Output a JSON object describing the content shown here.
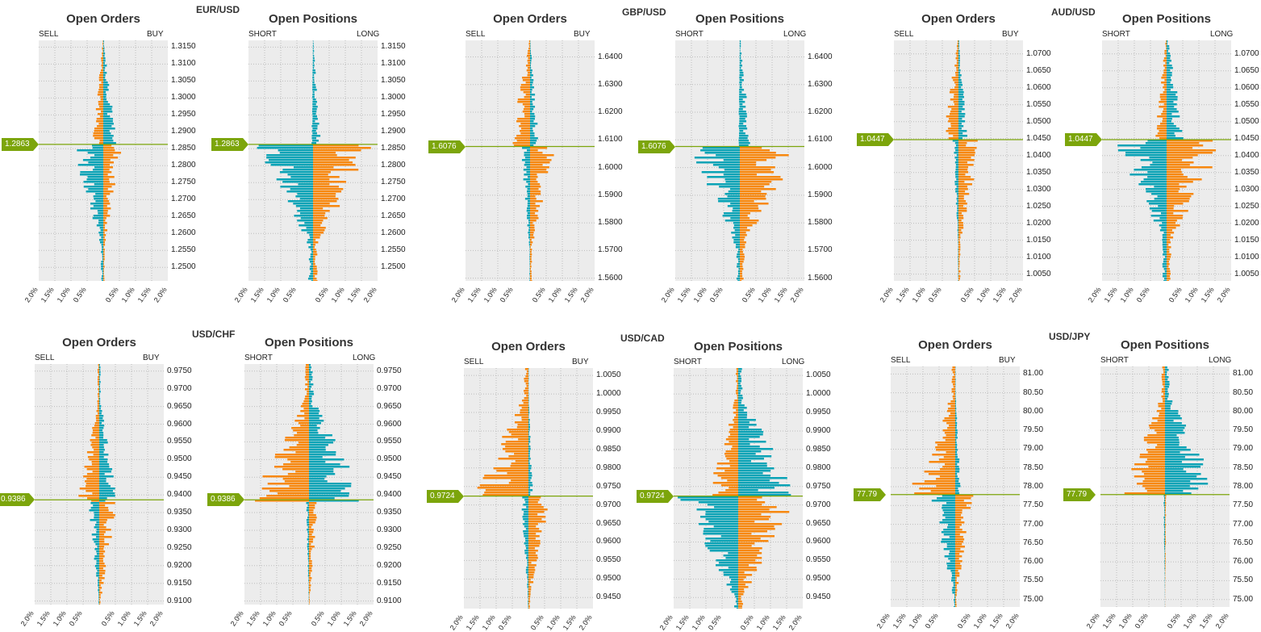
{
  "colors": {
    "orange": "#f7880f",
    "teal": "#0aa3b6",
    "current_line": "#7ca50b",
    "plot_bg": "#ececec",
    "grid": "#bdbdbd"
  },
  "chart_data": [
    {
      "pair": "EUR/USD",
      "type": "bar",
      "title": "Open Orders",
      "left_label": "SELL",
      "right_label": "BUY",
      "current_price_label": "1.2863",
      "current_price": 1.2863,
      "ylim": [
        1.246,
        1.317
      ],
      "y_ticks": [
        "1.3150",
        "1.3100",
        "1.3050",
        "1.3000",
        "1.2950",
        "1.2900",
        "1.2850",
        "1.2800",
        "1.2750",
        "1.2700",
        "1.2650",
        "1.2600",
        "1.2550",
        "1.2500"
      ],
      "x_ticks": [
        "2.0%",
        "1.5%",
        "1.0%",
        "0.5%",
        "",
        "0.5%",
        "1.0%",
        "1.5%",
        "2.0%"
      ],
      "xlim": [
        -2,
        2
      ],
      "profile": {
        "above": {
          "left_max": 0.35,
          "right_max": 0.45,
          "left_color": "orange",
          "right_color": "teal"
        },
        "below": {
          "left_max": 1.0,
          "right_max": 0.6,
          "left_color": "teal",
          "right_color": "orange"
        }
      }
    },
    {
      "pair": "EUR/USD",
      "type": "bar",
      "title": "Open Positions",
      "left_label": "SHORT",
      "right_label": "LONG",
      "current_price_label": "1.2863",
      "current_price": 1.2863,
      "ylim": [
        1.246,
        1.317
      ],
      "y_ticks": [
        "1.3150",
        "1.3100",
        "1.3050",
        "1.3000",
        "1.2950",
        "1.2900",
        "1.2850",
        "1.2800",
        "1.2750",
        "1.2700",
        "1.2650",
        "1.2600",
        "1.2550",
        "1.2500"
      ],
      "x_ticks": [
        "2.0%",
        "1.5%",
        "1.0%",
        "0.5%",
        "",
        "0.5%",
        "1.0%",
        "1.5%",
        "2.0%"
      ],
      "xlim": [
        -2,
        2
      ],
      "profile": {
        "above": {
          "left_max": 0.05,
          "right_max": 0.25,
          "left_color": "teal",
          "right_color": "teal"
        },
        "below": {
          "left_max": 1.9,
          "right_max": 1.9,
          "left_color": "teal",
          "right_color": "orange"
        }
      }
    },
    {
      "pair": "GBP/USD",
      "type": "bar",
      "title": "Open Orders",
      "left_label": "SELL",
      "right_label": "BUY",
      "current_price_label": "1.6076",
      "current_price": 1.6076,
      "ylim": [
        1.559,
        1.646
      ],
      "y_ticks": [
        "1.6400",
        "1.6300",
        "1.6200",
        "1.6100",
        "1.6000",
        "1.5900",
        "1.5800",
        "1.5700",
        "1.5600"
      ],
      "x_ticks": [
        "2.0%",
        "1.5%",
        "1.0%",
        "0.5%",
        "",
        "0.5%",
        "1.0%",
        "1.5%",
        "2.0%"
      ],
      "xlim": [
        -2,
        2
      ],
      "profile": {
        "above": {
          "left_max": 0.7,
          "right_max": 0.3,
          "left_color": "orange",
          "right_color": "teal"
        },
        "below": {
          "left_max": 0.3,
          "right_max": 0.8,
          "left_color": "teal",
          "right_color": "orange"
        }
      }
    },
    {
      "pair": "GBP/USD",
      "type": "bar",
      "title": "Open Positions",
      "left_label": "SHORT",
      "right_label": "LONG",
      "current_price_label": "1.6076",
      "current_price": 1.6076,
      "ylim": [
        1.559,
        1.646
      ],
      "y_ticks": [
        "1.6400",
        "1.6300",
        "1.6200",
        "1.6100",
        "1.6000",
        "1.5900",
        "1.5800",
        "1.5700",
        "1.5600"
      ],
      "x_ticks": [
        "2.0%",
        "1.5%",
        "1.0%",
        "0.5%",
        "",
        "0.5%",
        "1.0%",
        "1.5%",
        "2.0%"
      ],
      "xlim": [
        -2,
        2
      ],
      "profile": {
        "above": {
          "left_max": 0.05,
          "right_max": 0.4,
          "left_color": "teal",
          "right_color": "teal"
        },
        "below": {
          "left_max": 1.6,
          "right_max": 1.9,
          "left_color": "teal",
          "right_color": "orange"
        }
      }
    },
    {
      "pair": "AUD/USD",
      "type": "bar",
      "title": "Open Orders",
      "left_label": "SELL",
      "right_label": "BUY",
      "current_price_label": "1.0447",
      "current_price": 1.0447,
      "ylim": [
        1.003,
        1.074
      ],
      "y_ticks": [
        "1.0700",
        "1.0650",
        "1.0600",
        "1.0550",
        "1.0500",
        "1.0450",
        "1.0400",
        "1.0350",
        "1.0300",
        "1.0250",
        "1.0200",
        "1.0150",
        "1.0100",
        "1.0050"
      ],
      "x_ticks": [
        "2.0%",
        "1.5%",
        "1.0%",
        "0.5%",
        "",
        "0.5%",
        "1.0%",
        "1.5%",
        "2.0%"
      ],
      "xlim": [
        -2,
        2
      ],
      "profile": {
        "above": {
          "left_max": 0.5,
          "right_max": 0.3,
          "left_color": "orange",
          "right_color": "teal"
        },
        "below": {
          "left_max": 0.2,
          "right_max": 0.8,
          "left_color": "teal",
          "right_color": "orange"
        }
      }
    },
    {
      "pair": "AUD/USD",
      "type": "bar",
      "title": "Open Positions",
      "left_label": "SHORT",
      "right_label": "LONG",
      "current_price_label": "1.0447",
      "current_price": 1.0447,
      "ylim": [
        1.003,
        1.074
      ],
      "y_ticks": [
        "1.0700",
        "1.0650",
        "1.0600",
        "1.0550",
        "1.0500",
        "1.0450",
        "1.0400",
        "1.0350",
        "1.0300",
        "1.0250",
        "1.0200",
        "1.0150",
        "1.0100",
        "1.0050"
      ],
      "x_ticks": [
        "2.0%",
        "1.5%",
        "1.0%",
        "0.5%",
        "",
        "0.5%",
        "1.0%",
        "1.5%",
        "2.0%"
      ],
      "xlim": [
        -2,
        2
      ],
      "profile": {
        "above": {
          "left_max": 0.4,
          "right_max": 0.6,
          "left_color": "orange",
          "right_color": "teal"
        },
        "below": {
          "left_max": 1.7,
          "right_max": 1.9,
          "left_color": "teal",
          "right_color": "orange"
        }
      }
    },
    {
      "pair": "USD/CHF",
      "type": "bar",
      "title": "Open Orders",
      "left_label": "SELL",
      "right_label": "BUY",
      "current_price_label": "0.9386",
      "current_price": 0.9386,
      "ylim": [
        0.909,
        0.977
      ],
      "y_ticks": [
        "0.9750",
        "0.9700",
        "0.9650",
        "0.9600",
        "0.9550",
        "0.9500",
        "0.9450",
        "0.9400",
        "0.9350",
        "0.9300",
        "0.9250",
        "0.9200",
        "0.9150",
        "0.9100"
      ],
      "x_ticks": [
        "2.0%",
        "1.5%",
        "1.0%",
        "0.5%",
        "",
        "0.5%",
        "1.0%",
        "1.5%",
        "2.0%"
      ],
      "xlim": [
        -2,
        2
      ],
      "profile": {
        "above": {
          "left_max": 0.7,
          "right_max": 0.6,
          "left_color": "orange",
          "right_color": "teal"
        },
        "below": {
          "left_max": 0.35,
          "right_max": 0.6,
          "left_color": "teal",
          "right_color": "orange"
        }
      }
    },
    {
      "pair": "USD/CHF",
      "type": "bar",
      "title": "Open Positions",
      "left_label": "SHORT",
      "right_label": "LONG",
      "current_price_label": "0.9386",
      "current_price": 0.9386,
      "ylim": [
        0.909,
        0.977
      ],
      "y_ticks": [
        "0.9750",
        "0.9700",
        "0.9650",
        "0.9600",
        "0.9550",
        "0.9500",
        "0.9450",
        "0.9400",
        "0.9350",
        "0.9300",
        "0.9250",
        "0.9200",
        "0.9150",
        "0.9100"
      ],
      "x_ticks": [
        "2.0%",
        "1.5%",
        "1.0%",
        "0.5%",
        "",
        "0.5%",
        "1.0%",
        "1.5%",
        "2.0%"
      ],
      "xlim": [
        -2,
        2
      ],
      "profile": {
        "above": {
          "left_max": 1.9,
          "right_max": 1.9,
          "left_color": "orange",
          "right_color": "teal"
        },
        "below": {
          "left_max": 0.1,
          "right_max": 0.3,
          "left_color": "teal",
          "right_color": "orange"
        }
      }
    },
    {
      "pair": "USD/CAD",
      "type": "bar",
      "title": "Open Orders",
      "left_label": "SELL",
      "right_label": "BUY",
      "current_price_label": "0.9724",
      "current_price": 0.9724,
      "ylim": [
        0.942,
        1.007
      ],
      "y_ticks": [
        "1.0050",
        "1.0000",
        "0.9950",
        "0.9900",
        "0.9850",
        "0.9800",
        "0.9750",
        "0.9700",
        "0.9650",
        "0.9600",
        "0.9550",
        "0.9500",
        "0.9450"
      ],
      "x_ticks": [
        "2.0%",
        "1.5%",
        "1.0%",
        "0.5%",
        "",
        "0.5%",
        "1.0%",
        "1.5%",
        "2.0%"
      ],
      "xlim": [
        -2,
        2
      ],
      "profile": {
        "above": {
          "left_max": 1.9,
          "right_max": 0.15,
          "left_color": "orange",
          "right_color": "teal"
        },
        "below": {
          "left_max": 0.25,
          "right_max": 0.7,
          "left_color": "teal",
          "right_color": "orange"
        }
      }
    },
    {
      "pair": "USD/CAD",
      "type": "bar",
      "title": "Open Positions",
      "left_label": "SHORT",
      "right_label": "LONG",
      "current_price_label": "0.9724",
      "current_price": 0.9724,
      "ylim": [
        0.942,
        1.007
      ],
      "y_ticks": [
        "1.0050",
        "1.0000",
        "0.9950",
        "0.9900",
        "0.9850",
        "0.9800",
        "0.9750",
        "0.9700",
        "0.9650",
        "0.9600",
        "0.9550",
        "0.9500",
        "0.9450"
      ],
      "x_ticks": [
        "2.0%",
        "1.5%",
        "1.0%",
        "0.5%",
        "",
        "0.5%",
        "1.0%",
        "1.5%",
        "2.0%"
      ],
      "xlim": [
        -2,
        2
      ],
      "profile": {
        "above": {
          "left_max": 1.0,
          "right_max": 1.95,
          "left_color": "orange",
          "right_color": "teal"
        },
        "below": {
          "left_max": 1.9,
          "right_max": 1.9,
          "left_color": "teal",
          "right_color": "orange"
        }
      }
    },
    {
      "pair": "USD/JPY",
      "type": "bar",
      "title": "Open Orders",
      "left_label": "SELL",
      "right_label": "BUY",
      "current_price_label": "77.79",
      "current_price": 77.79,
      "ylim": [
        74.8,
        81.2
      ],
      "y_ticks": [
        "81.00",
        "80.50",
        "80.00",
        "79.50",
        "79.00",
        "78.50",
        "78.00",
        "77.50",
        "77.00",
        "76.50",
        "76.00",
        "75.50",
        "75.00"
      ],
      "x_ticks": [
        "2.0%",
        "1.5%",
        "1.0%",
        "0.5%",
        "",
        "0.5%",
        "1.0%",
        "1.5%",
        "2.0%"
      ],
      "xlim": [
        -2,
        2
      ],
      "profile": {
        "above": {
          "left_max": 1.5,
          "right_max": 0.2,
          "left_color": "orange",
          "right_color": "teal"
        },
        "below": {
          "left_max": 0.8,
          "right_max": 0.6,
          "left_color": "teal",
          "right_color": "orange"
        }
      }
    },
    {
      "pair": "USD/JPY",
      "type": "bar",
      "title": "Open Positions",
      "left_label": "SHORT",
      "right_label": "LONG",
      "current_price_label": "77.79",
      "current_price": 77.79,
      "ylim": [
        74.8,
        81.2
      ],
      "y_ticks": [
        "81.00",
        "80.50",
        "80.00",
        "79.50",
        "79.00",
        "78.50",
        "78.00",
        "77.50",
        "77.00",
        "76.50",
        "76.00",
        "75.50",
        "75.00"
      ],
      "x_ticks": [
        "2.0%",
        "1.5%",
        "1.0%",
        "0.5%",
        "",
        "0.5%",
        "1.0%",
        "1.5%",
        "2.0%"
      ],
      "xlim": [
        -2,
        2
      ],
      "profile": {
        "above": {
          "left_max": 1.4,
          "right_max": 1.9,
          "left_color": "orange",
          "right_color": "teal"
        },
        "below": {
          "left_max": 0.05,
          "right_max": 0.05,
          "left_color": "teal",
          "right_color": "orange"
        }
      }
    }
  ]
}
